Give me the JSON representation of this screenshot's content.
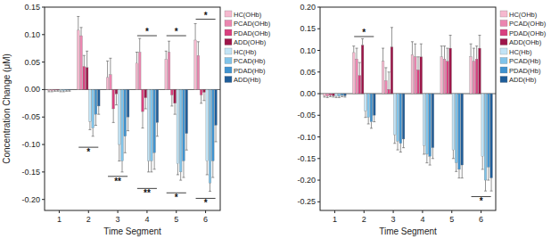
{
  "chart_data": [
    {
      "type": "bar",
      "y_label": "Concentration Change (μM)",
      "x_label": "Time Segment",
      "categories": [
        "1",
        "2",
        "3",
        "4",
        "5",
        "6"
      ],
      "series": [
        {
          "name": "HC(OHb)",
          "color": "#f6b9cf",
          "values": [
            -0.002,
            0.108,
            0.022,
            0.048,
            0.055,
            0.09
          ],
          "errors": [
            0.002,
            0.025,
            0.03,
            0.02,
            0.015,
            0.03
          ]
        },
        {
          "name": "PCAD(OHb)",
          "color": "#eb86b0",
          "values": [
            -0.002,
            0.098,
            0.027,
            0.068,
            0.068,
            0.062
          ],
          "errors": [
            0.002,
            0.015,
            0.03,
            0.025,
            0.02,
            0.025
          ]
        },
        {
          "name": "PDAD(OHb)",
          "color": "#d9407f",
          "values": [
            -0.001,
            0.042,
            -0.035,
            -0.04,
            -0.01,
            -0.01
          ],
          "errors": [
            0.002,
            0.02,
            0.025,
            0.03,
            0.02,
            0.015
          ]
        },
        {
          "name": "ADD(OHb)",
          "color": "#9e1549",
          "values": [
            -0.001,
            0.04,
            -0.008,
            -0.015,
            -0.025,
            -0.005
          ],
          "errors": [
            0.002,
            0.03,
            0.02,
            0.02,
            0.02,
            0.015
          ]
        },
        {
          "name": "HC(Hb)",
          "color": "#c2e4f6",
          "values": [
            -0.002,
            -0.058,
            -0.1,
            -0.13,
            -0.135,
            -0.13
          ],
          "errors": [
            0.002,
            0.015,
            0.03,
            0.02,
            0.02,
            0.025
          ]
        },
        {
          "name": "PCAD(Hb)",
          "color": "#80c4ea",
          "values": [
            -0.002,
            -0.07,
            -0.13,
            -0.13,
            -0.15,
            -0.17
          ],
          "errors": [
            0.002,
            0.015,
            0.02,
            0.02,
            0.015,
            0.015
          ]
        },
        {
          "name": "PDAD(Hb)",
          "color": "#3f93d0",
          "values": [
            -0.001,
            -0.045,
            -0.085,
            -0.115,
            -0.13,
            -0.13
          ],
          "errors": [
            0.002,
            0.02,
            0.03,
            0.03,
            0.03,
            0.03
          ]
        },
        {
          "name": "ADD(Hb)",
          "color": "#1f5d99",
          "values": [
            -0.001,
            -0.03,
            -0.05,
            -0.06,
            -0.08,
            -0.065
          ],
          "errors": [
            0.002,
            0.015,
            0.025,
            0.025,
            0.03,
            0.03
          ]
        }
      ],
      "ylim": [
        -0.22,
        0.15
      ],
      "yticks": [
        {
          "value": -0.2,
          "label": "-0.20"
        },
        {
          "value": -0.15,
          "label": "-0.15"
        },
        {
          "value": -0.1,
          "label": "-0.10"
        },
        {
          "value": -0.05,
          "label": "-0.05"
        },
        {
          "value": 0,
          "label": "0.00"
        },
        {
          "value": 0.05,
          "label": "0.05"
        },
        {
          "value": 0.1,
          "label": "0.10"
        },
        {
          "value": 0.15,
          "label": "0.15"
        }
      ],
      "grid": false,
      "legend": "right",
      "annotations": [
        {
          "text": "*",
          "x": "2",
          "y": -0.105
        },
        {
          "text": "**",
          "x": "3",
          "y": -0.158
        },
        {
          "text": "**",
          "x": "4",
          "y": -0.18
        },
        {
          "text": "*",
          "x": "5",
          "y": -0.188
        },
        {
          "text": "*",
          "x": "6",
          "y": -0.198
        },
        {
          "text": "*",
          "x": "4",
          "y": 0.098
        },
        {
          "text": "*",
          "x": "5",
          "y": 0.098
        },
        {
          "text": "*",
          "x": "6",
          "y": 0.128
        }
      ]
    },
    {
      "type": "bar",
      "x_label": "Time Segment",
      "categories": [
        "1",
        "2",
        "3",
        "4",
        "5",
        "6"
      ],
      "series": [
        {
          "name": "HC(OHb)",
          "color": "#f6b9cf",
          "values": [
            -0.005,
            0.095,
            0.075,
            0.09,
            0.085,
            0.085
          ],
          "errors": [
            0.003,
            0.015,
            0.03,
            0.03,
            0.025,
            0.03
          ]
        },
        {
          "name": "PCAD(OHb)",
          "color": "#eb86b0",
          "values": [
            -0.006,
            0.08,
            0.03,
            0.085,
            0.08,
            0.075
          ],
          "errors": [
            0.003,
            0.025,
            0.03,
            0.03,
            0.03,
            0.03
          ]
        },
        {
          "name": "PDAD(OHb)",
          "color": "#d9407f",
          "values": [
            -0.004,
            0.042,
            0.01,
            0.055,
            0.075,
            0.08
          ],
          "errors": [
            0.003,
            0.03,
            0.04,
            0.03,
            0.03,
            0.03
          ]
        },
        {
          "name": "ADD(OHb)",
          "color": "#9e1549",
          "values": [
            -0.005,
            0.112,
            0.108,
            0.085,
            0.105,
            0.105
          ],
          "errors": [
            0.003,
            0.015,
            0.045,
            0.03,
            0.03,
            0.03
          ]
        },
        {
          "name": "HC(Hb)",
          "color": "#c2e4f6",
          "values": [
            -0.006,
            -0.04,
            -0.095,
            -0.12,
            -0.13,
            -0.145
          ],
          "errors": [
            0.003,
            0.015,
            0.02,
            0.02,
            0.02,
            0.03
          ]
        },
        {
          "name": "PCAD(Hb)",
          "color": "#80c4ea",
          "values": [
            -0.006,
            -0.055,
            -0.11,
            -0.14,
            -0.16,
            -0.2
          ],
          "errors": [
            0.003,
            0.015,
            0.02,
            0.02,
            0.02,
            0.025
          ]
        },
        {
          "name": "PDAD(Hb)",
          "color": "#3f93d0",
          "values": [
            -0.004,
            -0.065,
            -0.115,
            -0.145,
            -0.175,
            -0.17
          ],
          "errors": [
            0.003,
            0.015,
            0.02,
            0.02,
            0.02,
            0.03
          ]
        },
        {
          "name": "ADD(Hb)",
          "color": "#1f5d99",
          "values": [
            -0.005,
            -0.05,
            -0.105,
            -0.125,
            -0.165,
            -0.195
          ],
          "errors": [
            0.003,
            0.015,
            0.02,
            0.025,
            0.03,
            0.03
          ]
        }
      ],
      "ylim": [
        -0.27,
        0.2
      ],
      "yticks": [
        {
          "value": -0.25,
          "label": "-0.25"
        },
        {
          "value": -0.2,
          "label": "-0.20"
        },
        {
          "value": -0.15,
          "label": "-0.15"
        },
        {
          "value": -0.1,
          "label": "-0.10"
        },
        {
          "value": -0.05,
          "label": "-0.05"
        },
        {
          "value": 0,
          "label": "0.00"
        },
        {
          "value": 0.05,
          "label": "0.05"
        },
        {
          "value": 0.1,
          "label": "0.10"
        },
        {
          "value": 0.15,
          "label": "0.15"
        },
        {
          "value": 0.2,
          "label": "0.20"
        }
      ],
      "grid": false,
      "legend": "right",
      "annotations": [
        {
          "text": "*",
          "x": "2",
          "y": 0.132
        },
        {
          "text": "*",
          "x": "6",
          "y": -0.238
        }
      ]
    }
  ]
}
